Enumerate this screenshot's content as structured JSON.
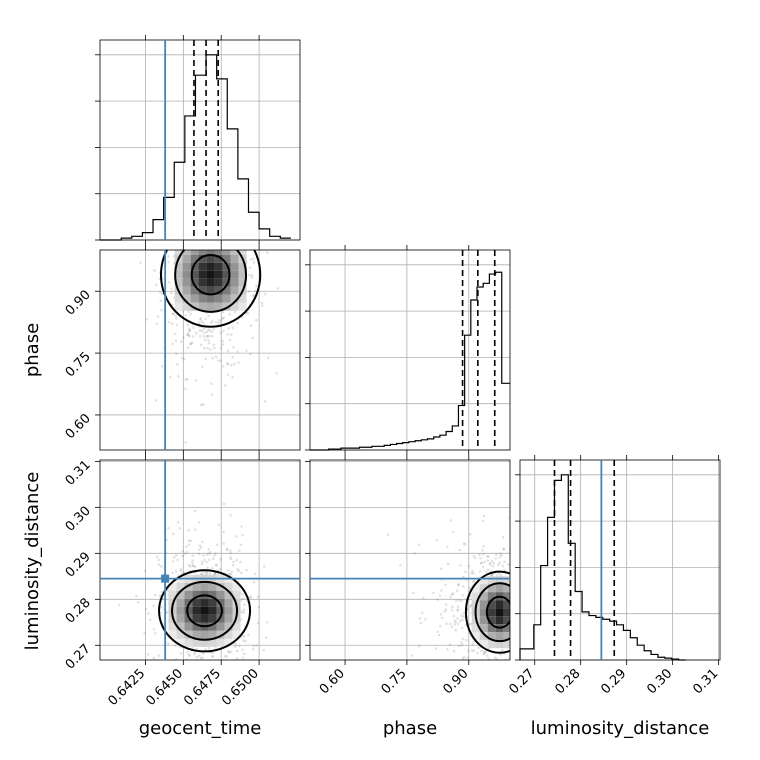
{
  "chart_data": {
    "type": "corner",
    "parameters": [
      "geocent_time",
      "phase",
      "luminosity_distance"
    ],
    "truths": {
      "geocent_time": 0.6438,
      "phase": null,
      "luminosity_distance": 0.2845
    },
    "colors": {
      "truth": "#4682b4",
      "hist": "#000000",
      "grid": "#b0b0b0",
      "density": "#000000"
    },
    "grid": true,
    "ranges": {
      "geocent_time": [
        0.6395,
        0.6527
      ],
      "phase": [
        0.515,
        1.0
      ],
      "luminosity_distance": [
        0.2668,
        0.3103
      ]
    },
    "ticks": {
      "geocent_time": [
        "0.6425",
        "0.6450",
        "0.6475",
        "0.6500"
      ],
      "phase": [
        "0.60",
        "0.75",
        "0.90"
      ],
      "luminosity_distance": [
        "0.27",
        "0.28",
        "0.29",
        "0.30",
        "0.31"
      ]
    },
    "tick_values": {
      "geocent_time": [
        0.6425,
        0.645,
        0.6475,
        0.65
      ],
      "phase": [
        0.6,
        0.75,
        0.9
      ],
      "luminosity_distance": [
        0.27,
        0.28,
        0.29,
        0.3,
        0.31
      ]
    },
    "quantiles": {
      "geocent_time": [
        0.6457,
        0.6465,
        0.6473
      ],
      "phase": [
        0.885,
        0.922,
        0.963
      ],
      "luminosity_distance": [
        0.2743,
        0.2778,
        0.2873
      ]
    },
    "histograms": {
      "geocent_time": {
        "edges": [
          0.6395,
          0.6402,
          0.6409,
          0.6416,
          0.6423,
          0.643,
          0.6437,
          0.6444,
          0.6451,
          0.6458,
          0.6465,
          0.6472,
          0.6479,
          0.6486,
          0.6493,
          0.65,
          0.6507,
          0.6514,
          0.6521
        ],
        "counts": [
          0,
          0,
          0.01,
          0.02,
          0.04,
          0.11,
          0.23,
          0.42,
          0.67,
          0.89,
          1.0,
          0.87,
          0.6,
          0.33,
          0.15,
          0.06,
          0.02,
          0.01
        ]
      },
      "phase": {
        "edges": [
          0.515,
          0.53,
          0.545,
          0.56,
          0.575,
          0.59,
          0.605,
          0.62,
          0.635,
          0.65,
          0.665,
          0.68,
          0.695,
          0.71,
          0.725,
          0.74,
          0.755,
          0.77,
          0.785,
          0.8,
          0.815,
          0.83,
          0.845,
          0.86,
          0.875,
          0.89,
          0.905,
          0.92,
          0.935,
          0.95,
          0.965,
          0.98,
          0.995,
          1.0
        ],
        "counts": [
          0,
          0,
          0,
          0.005,
          0.005,
          0.01,
          0.01,
          0.01,
          0.015,
          0.015,
          0.02,
          0.02,
          0.025,
          0.03,
          0.035,
          0.04,
          0.045,
          0.05,
          0.055,
          0.06,
          0.07,
          0.08,
          0.1,
          0.13,
          0.24,
          0.62,
          0.81,
          0.88,
          0.9,
          0.95,
          0.96,
          0.36,
          0.36
        ]
      },
      "luminosity_distance": {
        "edges": [
          0.2668,
          0.2683,
          0.2698,
          0.2713,
          0.2728,
          0.2743,
          0.2758,
          0.2773,
          0.2788,
          0.2803,
          0.2818,
          0.2833,
          0.2848,
          0.2863,
          0.2878,
          0.2893,
          0.2908,
          0.2923,
          0.2938,
          0.2953,
          0.2968,
          0.2983,
          0.2998,
          0.3013,
          0.3028
        ],
        "counts": [
          0.06,
          0.06,
          0.19,
          0.51,
          0.77,
          0.97,
          1.0,
          0.63,
          0.37,
          0.26,
          0.24,
          0.23,
          0.22,
          0.21,
          0.19,
          0.16,
          0.12,
          0.08,
          0.05,
          0.03,
          0.015,
          0.01,
          0.005,
          0
        ]
      }
    },
    "joint": [
      {
        "x": "geocent_time",
        "y": "phase",
        "center": [
          0.6468,
          0.94
        ],
        "spread": [
          0.0012,
          0.05
        ],
        "cloud_spread": [
          0.0016,
          0.12
        ]
      },
      {
        "x": "geocent_time",
        "y": "luminosity_distance",
        "center": [
          0.6464,
          0.2775
        ],
        "spread": [
          0.0011,
          0.0035
        ],
        "cloud_spread": [
          0.0015,
          0.008
        ]
      },
      {
        "x": "phase",
        "y": "luminosity_distance",
        "center": [
          0.975,
          0.2772
        ],
        "spread": [
          0.03,
          0.0035
        ],
        "cloud_spread": [
          0.08,
          0.008
        ]
      }
    ]
  },
  "labels": {
    "x": [
      "geocent_time",
      "phase",
      "luminosity_distance"
    ],
    "y": [
      "phase",
      "luminosity_distance"
    ]
  }
}
